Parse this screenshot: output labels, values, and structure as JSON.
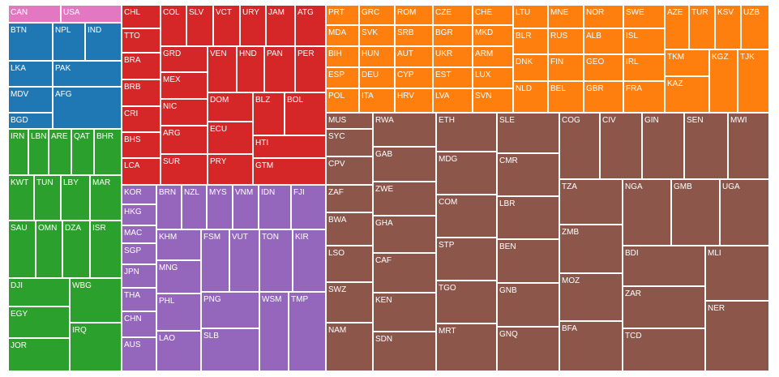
{
  "chart_data": {
    "type": "treemap",
    "colors": {
      "north_america": "#e377c2",
      "south_asia": "#1f77b4",
      "middle_east_north_africa": "#2ca02c",
      "latin_america_caribbean": "#d62728",
      "east_asia_pacific": "#9467bd",
      "europe_central_asia": "#ff7f0e",
      "sub_saharan_africa": "#8c564b"
    },
    "tiles": [
      {
        "label": "CAN",
        "group": "north_america"
      },
      {
        "label": "USA",
        "group": "north_america"
      },
      {
        "label": "BTN",
        "group": "south_asia"
      },
      {
        "label": "NPL",
        "group": "south_asia"
      },
      {
        "label": "IND",
        "group": "south_asia"
      },
      {
        "label": "LKA",
        "group": "south_asia"
      },
      {
        "label": "PAK",
        "group": "south_asia"
      },
      {
        "label": "MDV",
        "group": "south_asia"
      },
      {
        "label": "AFG",
        "group": "south_asia"
      },
      {
        "label": "BGD",
        "group": "south_asia"
      },
      {
        "label": "IRN",
        "group": "middle_east_north_africa"
      },
      {
        "label": "LBN",
        "group": "middle_east_north_africa"
      },
      {
        "label": "ARE",
        "group": "middle_east_north_africa"
      },
      {
        "label": "QAT",
        "group": "middle_east_north_africa"
      },
      {
        "label": "BHR",
        "group": "middle_east_north_africa"
      },
      {
        "label": "KWT",
        "group": "middle_east_north_africa"
      },
      {
        "label": "TUN",
        "group": "middle_east_north_africa"
      },
      {
        "label": "LBY",
        "group": "middle_east_north_africa"
      },
      {
        "label": "MAR",
        "group": "middle_east_north_africa"
      },
      {
        "label": "SAU",
        "group": "middle_east_north_africa"
      },
      {
        "label": "OMN",
        "group": "middle_east_north_africa"
      },
      {
        "label": "DZA",
        "group": "middle_east_north_africa"
      },
      {
        "label": "ISR",
        "group": "middle_east_north_africa"
      },
      {
        "label": "DJI",
        "group": "middle_east_north_africa"
      },
      {
        "label": "WBG",
        "group": "middle_east_north_africa"
      },
      {
        "label": "EGY",
        "group": "middle_east_north_africa"
      },
      {
        "label": "IRQ",
        "group": "middle_east_north_africa"
      },
      {
        "label": "JOR",
        "group": "middle_east_north_africa"
      },
      {
        "label": "CHL",
        "group": "latin_america_caribbean"
      },
      {
        "label": "COL",
        "group": "latin_america_caribbean"
      },
      {
        "label": "SLV",
        "group": "latin_america_caribbean"
      },
      {
        "label": "VCT",
        "group": "latin_america_caribbean"
      },
      {
        "label": "URY",
        "group": "latin_america_caribbean"
      },
      {
        "label": "JAM",
        "group": "latin_america_caribbean"
      },
      {
        "label": "ATG",
        "group": "latin_america_caribbean"
      },
      {
        "label": "TTO",
        "group": "latin_america_caribbean"
      },
      {
        "label": "GRD",
        "group": "latin_america_caribbean"
      },
      {
        "label": "VEN",
        "group": "latin_america_caribbean"
      },
      {
        "label": "HND",
        "group": "latin_america_caribbean"
      },
      {
        "label": "PAN",
        "group": "latin_america_caribbean"
      },
      {
        "label": "PER",
        "group": "latin_america_caribbean"
      },
      {
        "label": "BRA",
        "group": "latin_america_caribbean"
      },
      {
        "label": "MEX",
        "group": "latin_america_caribbean"
      },
      {
        "label": "BRB",
        "group": "latin_america_caribbean"
      },
      {
        "label": "DOM",
        "group": "latin_america_caribbean"
      },
      {
        "label": "BLZ",
        "group": "latin_america_caribbean"
      },
      {
        "label": "BOL",
        "group": "latin_america_caribbean"
      },
      {
        "label": "NIC",
        "group": "latin_america_caribbean"
      },
      {
        "label": "CRI",
        "group": "latin_america_caribbean"
      },
      {
        "label": "ECU",
        "group": "latin_america_caribbean"
      },
      {
        "label": "ARG",
        "group": "latin_america_caribbean"
      },
      {
        "label": "BHS",
        "group": "latin_america_caribbean"
      },
      {
        "label": "HTI",
        "group": "latin_america_caribbean"
      },
      {
        "label": "PRY",
        "group": "latin_america_caribbean"
      },
      {
        "label": "SUR",
        "group": "latin_america_caribbean"
      },
      {
        "label": "LCA",
        "group": "latin_america_caribbean"
      },
      {
        "label": "GTM",
        "group": "latin_america_caribbean"
      },
      {
        "label": "KOR",
        "group": "east_asia_pacific"
      },
      {
        "label": "BRN",
        "group": "east_asia_pacific"
      },
      {
        "label": "NZL",
        "group": "east_asia_pacific"
      },
      {
        "label": "MYS",
        "group": "east_asia_pacific"
      },
      {
        "label": "VNM",
        "group": "east_asia_pacific"
      },
      {
        "label": "IDN",
        "group": "east_asia_pacific"
      },
      {
        "label": "FJI",
        "group": "east_asia_pacific"
      },
      {
        "label": "HKG",
        "group": "east_asia_pacific"
      },
      {
        "label": "MAC",
        "group": "east_asia_pacific"
      },
      {
        "label": "KHM",
        "group": "east_asia_pacific"
      },
      {
        "label": "FSM",
        "group": "east_asia_pacific"
      },
      {
        "label": "VUT",
        "group": "east_asia_pacific"
      },
      {
        "label": "TON",
        "group": "east_asia_pacific"
      },
      {
        "label": "KIR",
        "group": "east_asia_pacific"
      },
      {
        "label": "SGP",
        "group": "east_asia_pacific"
      },
      {
        "label": "JPN",
        "group": "east_asia_pacific"
      },
      {
        "label": "MNG",
        "group": "east_asia_pacific"
      },
      {
        "label": "THA",
        "group": "east_asia_pacific"
      },
      {
        "label": "PHL",
        "group": "east_asia_pacific"
      },
      {
        "label": "PNG",
        "group": "east_asia_pacific"
      },
      {
        "label": "WSM",
        "group": "east_asia_pacific"
      },
      {
        "label": "TMP",
        "group": "east_asia_pacific"
      },
      {
        "label": "CHN",
        "group": "east_asia_pacific"
      },
      {
        "label": "SLB",
        "group": "east_asia_pacific"
      },
      {
        "label": "LAO",
        "group": "east_asia_pacific"
      },
      {
        "label": "AUS",
        "group": "east_asia_pacific"
      },
      {
        "label": "PRT",
        "group": "europe_central_asia"
      },
      {
        "label": "GRC",
        "group": "europe_central_asia"
      },
      {
        "label": "ROM",
        "group": "europe_central_asia"
      },
      {
        "label": "CZE",
        "group": "europe_central_asia"
      },
      {
        "label": "CHE",
        "group": "europe_central_asia"
      },
      {
        "label": "LTU",
        "group": "europe_central_asia"
      },
      {
        "label": "MNE",
        "group": "europe_central_asia"
      },
      {
        "label": "NOR",
        "group": "europe_central_asia"
      },
      {
        "label": "SWE",
        "group": "europe_central_asia"
      },
      {
        "label": "AZE",
        "group": "europe_central_asia"
      },
      {
        "label": "TUR",
        "group": "europe_central_asia"
      },
      {
        "label": "KSV",
        "group": "europe_central_asia"
      },
      {
        "label": "UZB",
        "group": "europe_central_asia"
      },
      {
        "label": "MDA",
        "group": "europe_central_asia"
      },
      {
        "label": "SVK",
        "group": "europe_central_asia"
      },
      {
        "label": "SRB",
        "group": "europe_central_asia"
      },
      {
        "label": "BGR",
        "group": "europe_central_asia"
      },
      {
        "label": "MKD",
        "group": "europe_central_asia"
      },
      {
        "label": "BLR",
        "group": "europe_central_asia"
      },
      {
        "label": "RUS",
        "group": "europe_central_asia"
      },
      {
        "label": "ALB",
        "group": "europe_central_asia"
      },
      {
        "label": "ISL",
        "group": "europe_central_asia"
      },
      {
        "label": "BIH",
        "group": "europe_central_asia"
      },
      {
        "label": "HUN",
        "group": "europe_central_asia"
      },
      {
        "label": "AUT",
        "group": "europe_central_asia"
      },
      {
        "label": "UKR",
        "group": "europe_central_asia"
      },
      {
        "label": "ARM",
        "group": "europe_central_asia"
      },
      {
        "label": "TKM",
        "group": "europe_central_asia"
      },
      {
        "label": "KGZ",
        "group": "europe_central_asia"
      },
      {
        "label": "TJK",
        "group": "europe_central_asia"
      },
      {
        "label": "DNK",
        "group": "europe_central_asia"
      },
      {
        "label": "FIN",
        "group": "europe_central_asia"
      },
      {
        "label": "GEO",
        "group": "europe_central_asia"
      },
      {
        "label": "IRL",
        "group": "europe_central_asia"
      },
      {
        "label": "ESP",
        "group": "europe_central_asia"
      },
      {
        "label": "DEU",
        "group": "europe_central_asia"
      },
      {
        "label": "CYP",
        "group": "europe_central_asia"
      },
      {
        "label": "EST",
        "group": "europe_central_asia"
      },
      {
        "label": "LUX",
        "group": "europe_central_asia"
      },
      {
        "label": "KAZ",
        "group": "europe_central_asia"
      },
      {
        "label": "NLD",
        "group": "europe_central_asia"
      },
      {
        "label": "BEL",
        "group": "europe_central_asia"
      },
      {
        "label": "GBR",
        "group": "europe_central_asia"
      },
      {
        "label": "FRA",
        "group": "europe_central_asia"
      },
      {
        "label": "POL",
        "group": "europe_central_asia"
      },
      {
        "label": "ITA",
        "group": "europe_central_asia"
      },
      {
        "label": "HRV",
        "group": "europe_central_asia"
      },
      {
        "label": "LVA",
        "group": "europe_central_asia"
      },
      {
        "label": "SVN",
        "group": "europe_central_asia"
      },
      {
        "label": "MUS",
        "group": "sub_saharan_africa"
      },
      {
        "label": "RWA",
        "group": "sub_saharan_africa"
      },
      {
        "label": "ETH",
        "group": "sub_saharan_africa"
      },
      {
        "label": "SLE",
        "group": "sub_saharan_africa"
      },
      {
        "label": "COG",
        "group": "sub_saharan_africa"
      },
      {
        "label": "CIV",
        "group": "sub_saharan_africa"
      },
      {
        "label": "GIN",
        "group": "sub_saharan_africa"
      },
      {
        "label": "SEN",
        "group": "sub_saharan_africa"
      },
      {
        "label": "MWI",
        "group": "sub_saharan_africa"
      },
      {
        "label": "SYC",
        "group": "sub_saharan_africa"
      },
      {
        "label": "GAB",
        "group": "sub_saharan_africa"
      },
      {
        "label": "MDG",
        "group": "sub_saharan_africa"
      },
      {
        "label": "CMR",
        "group": "sub_saharan_africa"
      },
      {
        "label": "CPV",
        "group": "sub_saharan_africa"
      },
      {
        "label": "ZWE",
        "group": "sub_saharan_africa"
      },
      {
        "label": "TZA",
        "group": "sub_saharan_africa"
      },
      {
        "label": "NGA",
        "group": "sub_saharan_africa"
      },
      {
        "label": "GMB",
        "group": "sub_saharan_africa"
      },
      {
        "label": "UGA",
        "group": "sub_saharan_africa"
      },
      {
        "label": "ZAF",
        "group": "sub_saharan_africa"
      },
      {
        "label": "COM",
        "group": "sub_saharan_africa"
      },
      {
        "label": "LBR",
        "group": "sub_saharan_africa"
      },
      {
        "label": "GHA",
        "group": "sub_saharan_africa"
      },
      {
        "label": "BWA",
        "group": "sub_saharan_africa"
      },
      {
        "label": "ZMB",
        "group": "sub_saharan_africa"
      },
      {
        "label": "STP",
        "group": "sub_saharan_africa"
      },
      {
        "label": "BEN",
        "group": "sub_saharan_africa"
      },
      {
        "label": "LSO",
        "group": "sub_saharan_africa"
      },
      {
        "label": "CAF",
        "group": "sub_saharan_africa"
      },
      {
        "label": "BDI",
        "group": "sub_saharan_africa"
      },
      {
        "label": "MLI",
        "group": "sub_saharan_africa"
      },
      {
        "label": "MOZ",
        "group": "sub_saharan_africa"
      },
      {
        "label": "GNB",
        "group": "sub_saharan_africa"
      },
      {
        "label": "TGO",
        "group": "sub_saharan_africa"
      },
      {
        "label": "SWZ",
        "group": "sub_saharan_africa"
      },
      {
        "label": "KEN",
        "group": "sub_saharan_africa"
      },
      {
        "label": "ZAR",
        "group": "sub_saharan_africa"
      },
      {
        "label": "NER",
        "group": "sub_saharan_africa"
      },
      {
        "label": "BFA",
        "group": "sub_saharan_africa"
      },
      {
        "label": "NAM",
        "group": "sub_saharan_africa"
      },
      {
        "label": "MRT",
        "group": "sub_saharan_africa"
      },
      {
        "label": "GNQ",
        "group": "sub_saharan_africa"
      },
      {
        "label": "TCD",
        "group": "sub_saharan_africa"
      },
      {
        "label": "SDN",
        "group": "sub_saharan_africa"
      }
    ]
  }
}
